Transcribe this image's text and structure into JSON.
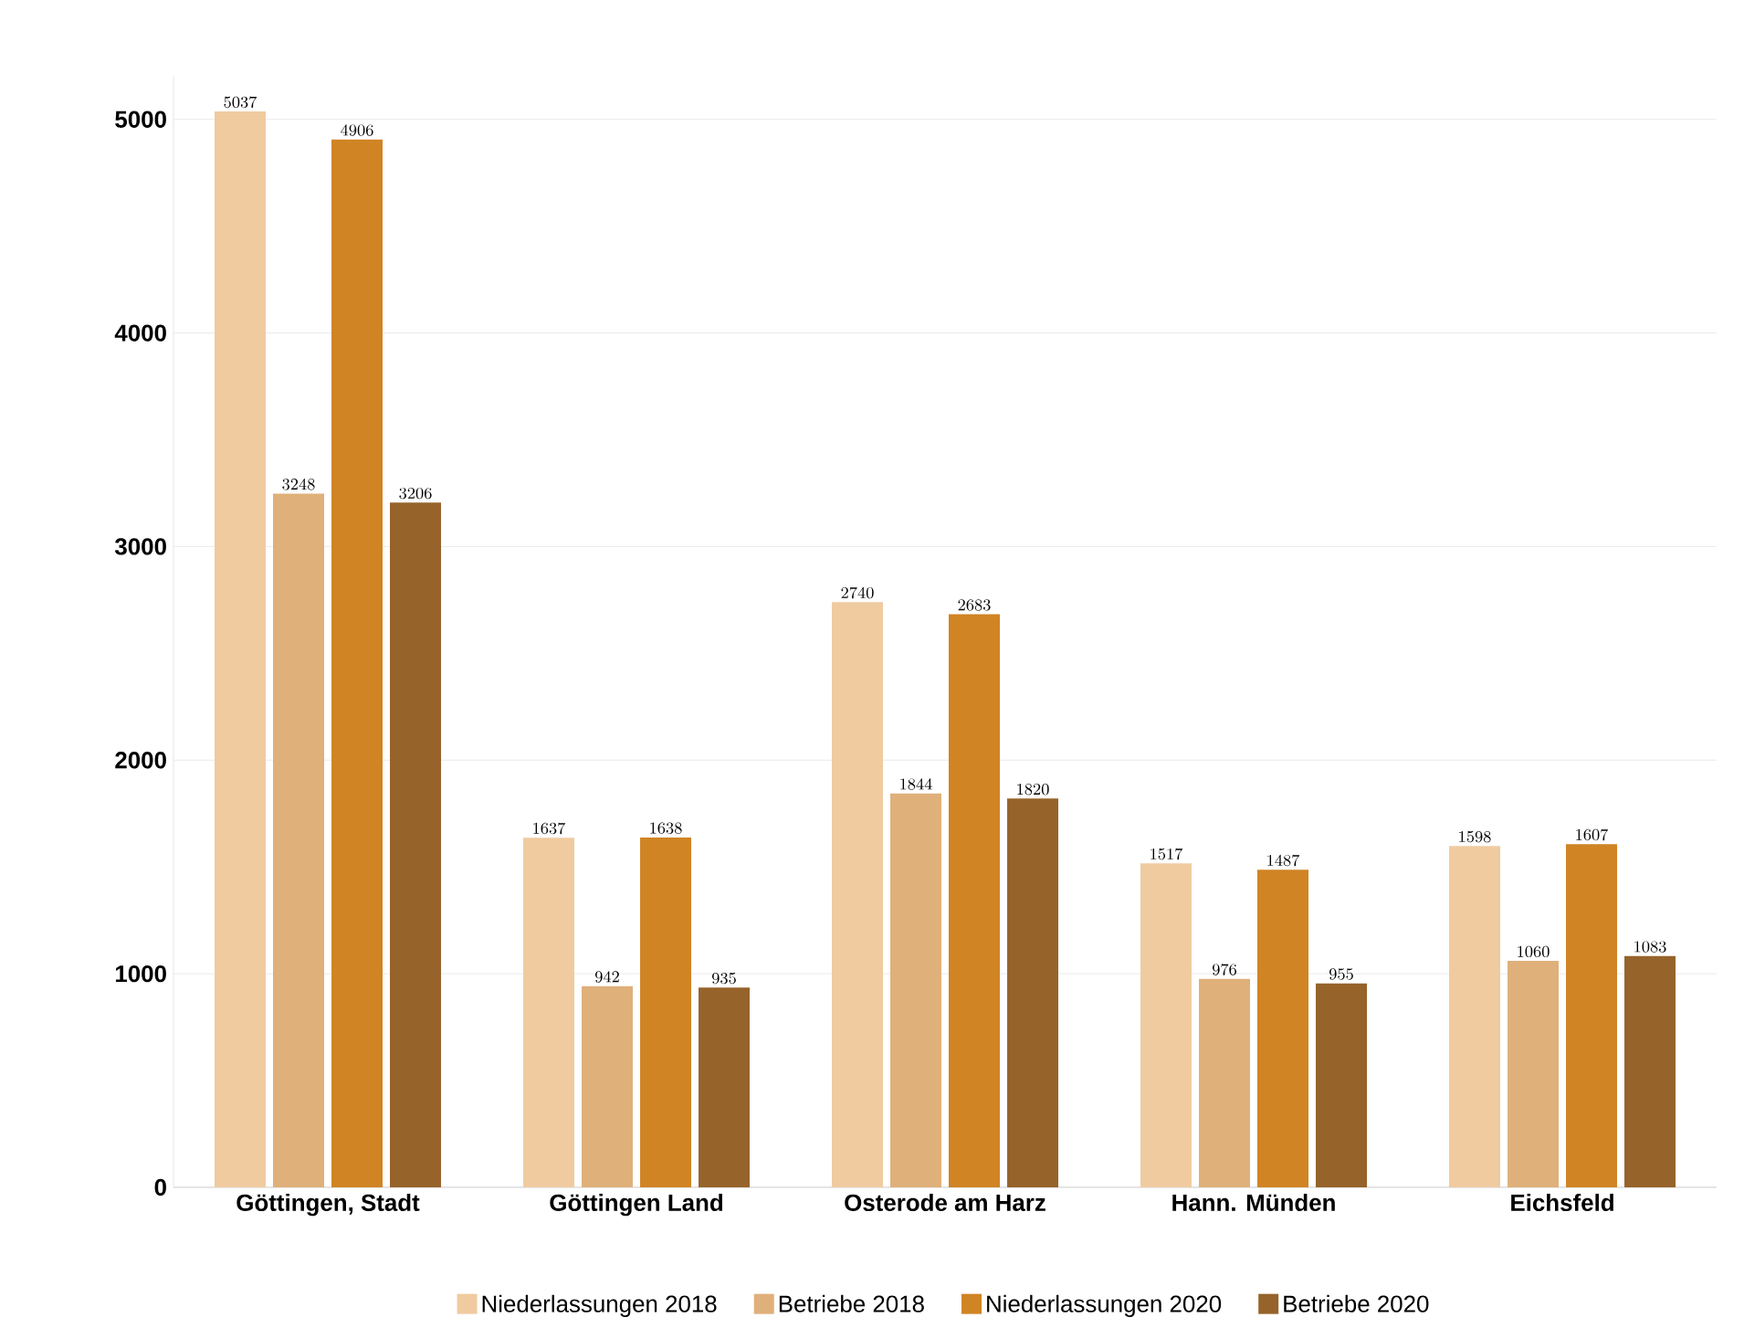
{
  "chart_data": {
    "type": "bar",
    "categories": [
      "Göttingen, Stadt",
      "Göttingen Land",
      "Osterode am Harz",
      "Hann. Münden",
      "Eichsfeld"
    ],
    "series": [
      {
        "name": "Niederlassungen 2018",
        "color": "#f0cba0",
        "values": [
          5037,
          1637,
          2740,
          1517,
          1598
        ]
      },
      {
        "name": "Betriebe 2018",
        "color": "#dfb07a",
        "values": [
          3248,
          942,
          1844,
          976,
          1060
        ]
      },
      {
        "name": "Niederlassungen 2020",
        "color": "#d08424",
        "values": [
          4906,
          1638,
          2683,
          1487,
          1607
        ]
      },
      {
        "name": "Betriebe 2020",
        "color": "#96632a",
        "values": [
          3206,
          935,
          1820,
          955,
          1083
        ]
      }
    ],
    "ylim": [
      0,
      5200
    ],
    "yticks": [
      0,
      1000,
      2000,
      3000,
      4000,
      5000
    ],
    "grid": "y",
    "legend": "bottom",
    "data_labels": true
  }
}
